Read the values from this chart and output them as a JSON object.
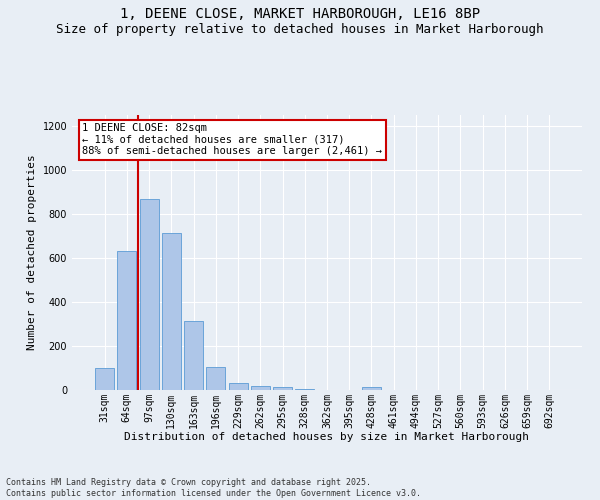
{
  "title": "1, DEENE CLOSE, MARKET HARBOROUGH, LE16 8BP",
  "subtitle": "Size of property relative to detached houses in Market Harborough",
  "xlabel": "Distribution of detached houses by size in Market Harborough",
  "ylabel": "Number of detached properties",
  "categories": [
    "31sqm",
    "64sqm",
    "97sqm",
    "130sqm",
    "163sqm",
    "196sqm",
    "229sqm",
    "262sqm",
    "295sqm",
    "328sqm",
    "362sqm",
    "395sqm",
    "428sqm",
    "461sqm",
    "494sqm",
    "527sqm",
    "560sqm",
    "593sqm",
    "626sqm",
    "659sqm",
    "692sqm"
  ],
  "values": [
    100,
    630,
    870,
    715,
    315,
    105,
    33,
    20,
    13,
    5,
    0,
    0,
    13,
    0,
    0,
    0,
    0,
    0,
    0,
    0,
    0
  ],
  "bar_color": "#aec6e8",
  "bar_edge_color": "#5b9bd5",
  "vline_x": 1.5,
  "vline_color": "#cc0000",
  "annotation_text": "1 DEENE CLOSE: 82sqm\n← 11% of detached houses are smaller (317)\n88% of semi-detached houses are larger (2,461) →",
  "annotation_box_color": "#ffffff",
  "annotation_box_edge_color": "#cc0000",
  "ylim": [
    0,
    1250
  ],
  "yticks": [
    0,
    200,
    400,
    600,
    800,
    1000,
    1200
  ],
  "background_color": "#e8eef5",
  "plot_bg_color": "#e8eef5",
  "grid_color": "#ffffff",
  "footer": "Contains HM Land Registry data © Crown copyright and database right 2025.\nContains public sector information licensed under the Open Government Licence v3.0.",
  "title_fontsize": 10,
  "subtitle_fontsize": 9,
  "xlabel_fontsize": 8,
  "ylabel_fontsize": 8,
  "tick_fontsize": 7,
  "annotation_fontsize": 7.5,
  "footer_fontsize": 6
}
